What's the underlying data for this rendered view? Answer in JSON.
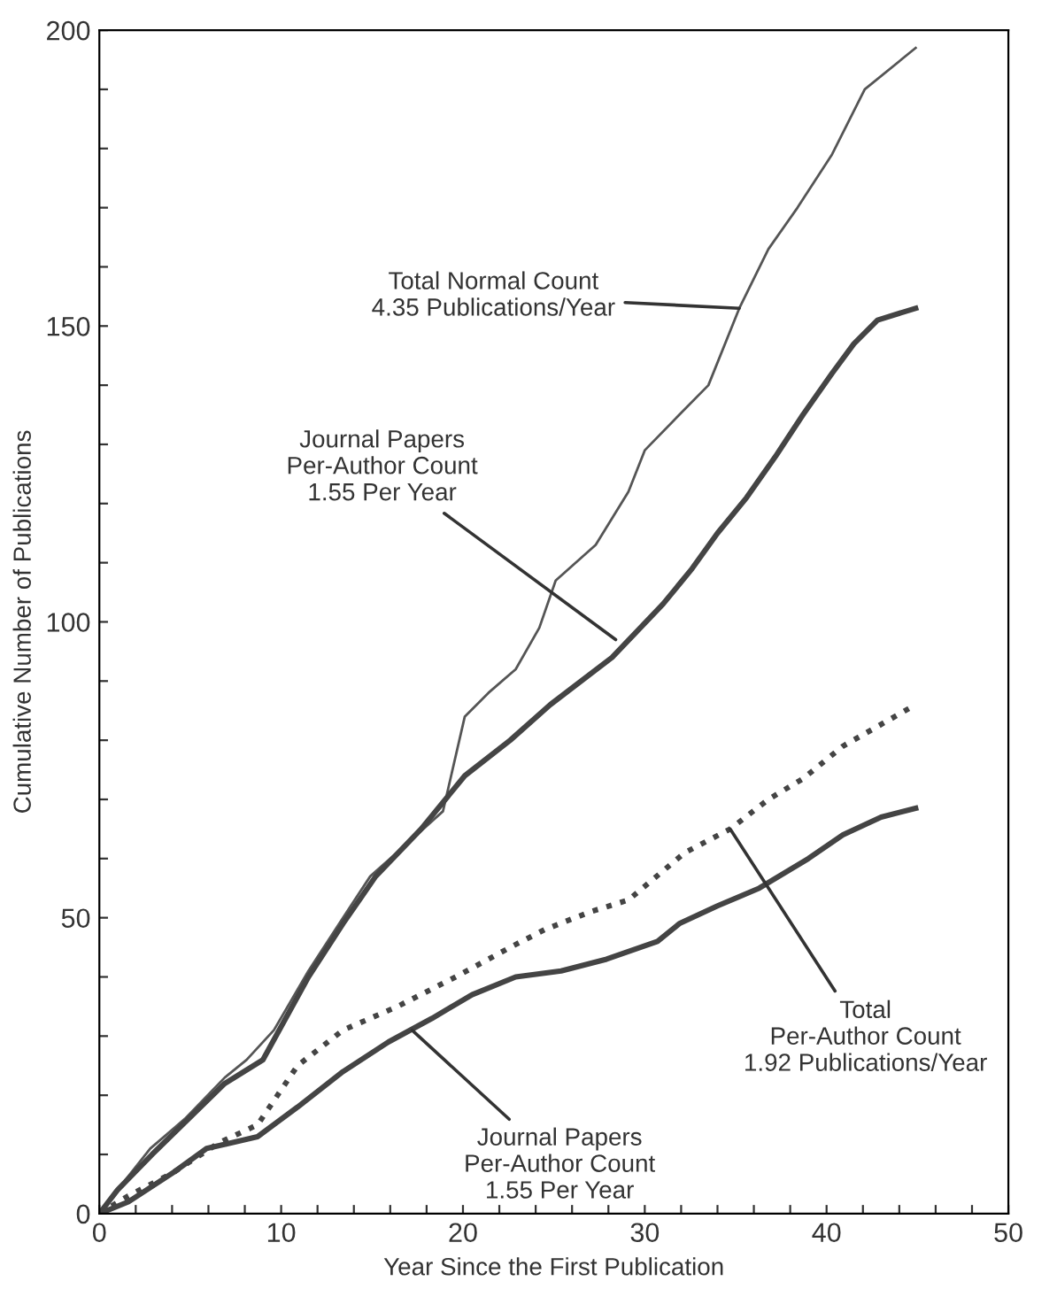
{
  "chart_data": {
    "type": "line",
    "xlabel": "Year Since the First Publication",
    "ylabel": "Cumulative Number of Publications",
    "series": [
      {
        "color": "#555555",
        "line_style": "solid",
        "x": [
          0,
          1,
          2.8,
          4.7,
          6.9,
          8.1,
          9.6,
          11.5,
          13.4,
          14.9,
          17.1,
          18.9,
          20.1,
          21.4,
          22.9,
          24.2,
          25.1,
          27.3,
          29.1,
          30,
          31.9,
          33.5,
          35.2,
          36.8,
          38.4,
          40.3,
          42.1,
          44.9
        ],
        "values": [
          0,
          4,
          11,
          16,
          23,
          26,
          31,
          41,
          50,
          57,
          63,
          68,
          84,
          88,
          92,
          99,
          107,
          113,
          122,
          129,
          135,
          140,
          153,
          163,
          170,
          179,
          190,
          197
        ]
      },
      {
        "color": "#444444",
        "line_style": "solid",
        "x": [
          0,
          1,
          2.9,
          6.9,
          9,
          11.5,
          13.4,
          15.2,
          17.7,
          20.1,
          22.6,
          24.8,
          28.2,
          31,
          32.6,
          34,
          35.6,
          37.2,
          38.7,
          40.3,
          41.5,
          42.8,
          44.9
        ],
        "values": [
          0,
          4,
          10,
          22,
          26,
          40,
          49,
          57,
          65,
          74,
          80,
          86,
          94,
          103,
          109,
          115,
          121,
          128,
          135,
          142,
          147,
          151,
          153
        ]
      },
      {
        "color": "#444444",
        "line_style": "dotted",
        "x": [
          0,
          1.6,
          4.1,
          6.6,
          8.7,
          10.9,
          13.4,
          16.4,
          19.6,
          22.6,
          24.5,
          27,
          29.1,
          32.2,
          34.7,
          36.8,
          38.7,
          40.9,
          44.9
        ],
        "values": [
          0,
          3,
          7,
          12,
          15,
          25,
          31,
          35,
          40,
          45,
          48,
          51,
          53,
          61,
          65,
          70,
          73.5,
          79,
          86
        ]
      },
      {
        "color": "#444444",
        "line_style": "solid",
        "x": [
          0,
          1.6,
          4.1,
          5.9,
          8.7,
          10.9,
          13.4,
          15.9,
          18.3,
          20.5,
          22.9,
          25.4,
          27.9,
          30.7,
          31.9,
          34,
          36.3,
          39,
          40.9,
          43,
          44.9
        ],
        "values": [
          0,
          2,
          7,
          11,
          13,
          18,
          24,
          29,
          33,
          37,
          40,
          41,
          43,
          46,
          49,
          52,
          55,
          60,
          64,
          67,
          68.5
        ]
      }
    ],
    "xlim": [
      0,
      50
    ],
    "ylim": [
      0,
      200
    ],
    "xticks": [
      0,
      {
        "value": 2,
        "label": null
      },
      {
        "value": 4,
        "label": null
      },
      {
        "value": 6,
        "label": null
      },
      {
        "value": 8,
        "label": null
      },
      10,
      {
        "value": 12,
        "label": null
      },
      {
        "value": 14,
        "label": null
      },
      {
        "value": 16,
        "label": null
      },
      {
        "value": 18,
        "label": null
      },
      20,
      {
        "value": 22,
        "label": null
      },
      {
        "value": 24,
        "label": null
      },
      {
        "value": 26,
        "label": null
      },
      {
        "value": 28,
        "label": null
      },
      30,
      {
        "value": 32,
        "label": null
      },
      {
        "value": 34,
        "label": null
      },
      {
        "value": 36,
        "label": null
      },
      {
        "value": 38,
        "label": null
      },
      40,
      {
        "value": 42,
        "label": null
      },
      {
        "value": 44,
        "label": null
      },
      {
        "value": 46,
        "label": null
      },
      {
        "value": 48,
        "label": null
      },
      50
    ],
    "yticks": [
      0,
      {
        "value": 10,
        "label": null
      },
      {
        "value": 20,
        "label": null
      },
      {
        "value": 30,
        "label": null
      },
      {
        "value": 40,
        "label": null
      },
      50,
      {
        "value": 60,
        "label": null
      },
      {
        "value": 70,
        "label": null
      },
      {
        "value": 80,
        "label": null
      },
      {
        "value": 90,
        "label": null
      },
      100,
      {
        "value": 110,
        "label": null
      },
      {
        "value": 120,
        "label": null
      },
      {
        "value": 130,
        "label": null
      },
      {
        "value": 140,
        "label": null
      },
      150,
      {
        "value": 160,
        "label": null
      },
      {
        "value": 170,
        "label": null
      },
      {
        "value": 180,
        "label": null
      },
      {
        "value": 190,
        "label": null
      },
      200
    ],
    "annotations": [
      {
        "text": "Total Normal Count\n4.35 Publications/Year",
        "x": 35.2,
        "y": 153
      },
      {
        "text": "Journal Papers\nPer-Author Count\n1.55 Per Year",
        "x": 28.4,
        "y": 97
      },
      {
        "text": "Total\nPer-Author Count\n1.92 Publications/Year",
        "x": 34.7,
        "y": 65
      },
      {
        "text": "Journal Papers\nPer-Author Count\n1.55 Per Year",
        "x": 17.2,
        "y": 31
      }
    ],
    "grid": false,
    "legend": false
  }
}
